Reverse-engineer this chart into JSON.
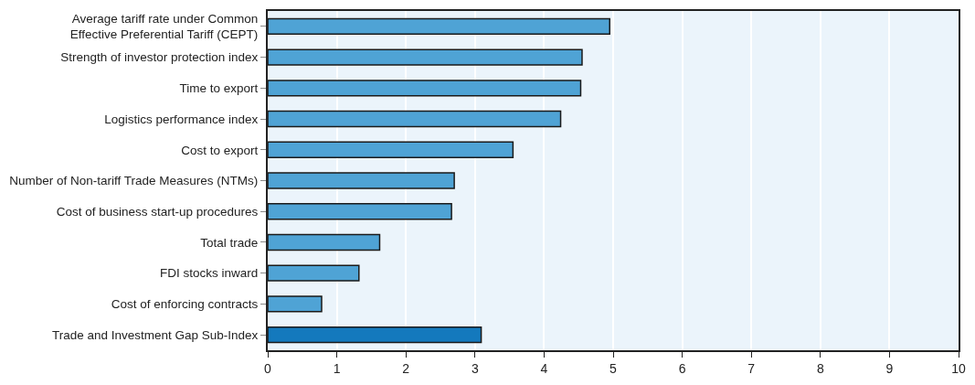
{
  "chart_data": {
    "type": "bar",
    "orientation": "horizontal",
    "categories": [
      "Average tariff rate under Common\nEffective Preferential Tariff (CEPT)",
      "Strength of investor protection index",
      "Time to export",
      "Logistics performance index",
      "Cost to export",
      "Number of Non-tariff Trade Measures (NTMs)",
      "Cost of business start-up procedures",
      "Total trade",
      "FDI stocks inward",
      "Cost of enforcing contracts",
      "Trade and Investment Gap Sub-Index"
    ],
    "values": [
      4.95,
      4.55,
      4.53,
      4.24,
      3.55,
      2.7,
      2.66,
      1.62,
      1.32,
      0.78,
      3.09
    ],
    "colors": [
      "#4fa3d5",
      "#4fa3d5",
      "#4fa3d5",
      "#4fa3d5",
      "#4fa3d5",
      "#4fa3d5",
      "#4fa3d5",
      "#4fa3d5",
      "#4fa3d5",
      "#4fa3d5",
      "#1479bd"
    ],
    "xlim": [
      0,
      10
    ],
    "xticks": [
      0,
      1,
      2,
      3,
      4,
      5,
      6,
      7,
      8,
      9,
      10
    ],
    "grid": "x"
  }
}
